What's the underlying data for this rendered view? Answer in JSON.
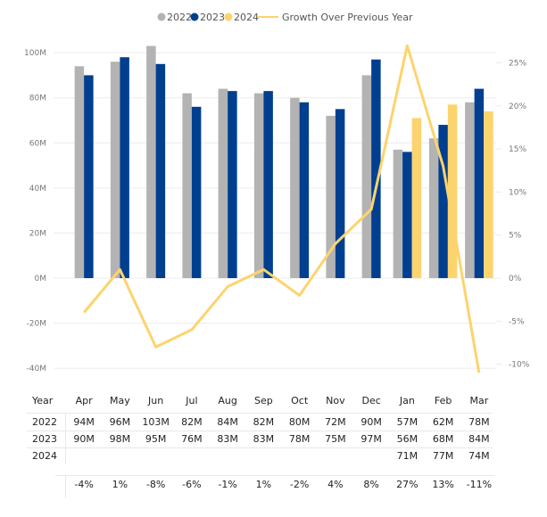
{
  "chart_data": {
    "type": "bar",
    "title": "",
    "categories": [
      "Apr",
      "May",
      "Jun",
      "Jul",
      "Aug",
      "Sep",
      "Oct",
      "Nov",
      "Dec",
      "Jan",
      "Feb",
      "Mar"
    ],
    "series": [
      {
        "name": "2022",
        "color": "#b3b3b3",
        "values": [
          94,
          96,
          103,
          82,
          84,
          82,
          80,
          72,
          90,
          57,
          62,
          78
        ],
        "labels": [
          "94M",
          "96M",
          "103M",
          "82M",
          "84M",
          "82M",
          "80M",
          "72M",
          "90M",
          "57M",
          "62M",
          "78M"
        ]
      },
      {
        "name": "2023",
        "color": "#003f8f",
        "values": [
          90,
          98,
          95,
          76,
          83,
          83,
          78,
          75,
          97,
          56,
          68,
          84
        ],
        "labels": [
          "90M",
          "98M",
          "95M",
          "76M",
          "83M",
          "83M",
          "78M",
          "75M",
          "97M",
          "56M",
          "68M",
          "84M"
        ]
      },
      {
        "name": "2024",
        "color": "#fcd46e",
        "values": [
          null,
          null,
          null,
          null,
          null,
          null,
          null,
          null,
          null,
          71,
          77,
          74
        ],
        "labels": [
          "",
          "",
          "",
          "",
          "",
          "",
          "",
          "",
          "",
          "71M",
          "77M",
          "74M"
        ]
      }
    ],
    "line_series": {
      "name": "Growth Over Previous Year",
      "color": "#fcd46e",
      "values": [
        -4,
        1,
        -8,
        -6,
        -1,
        1,
        -2,
        4,
        8,
        27,
        13,
        -11
      ],
      "labels": [
        "-4%",
        "1%",
        "-8%",
        "-6%",
        "-1%",
        "1%",
        "-2%",
        "4%",
        "8%",
        "27%",
        "13%",
        "-11%"
      ]
    },
    "left_axis": {
      "ticks": [
        "100M",
        "80M",
        "60M",
        "40M",
        "20M",
        "0M",
        "-20M",
        "-40M"
      ],
      "values": [
        100,
        80,
        60,
        40,
        20,
        0,
        -20,
        -40
      ],
      "range": [
        -40,
        100
      ],
      "unit": "M"
    },
    "right_axis": {
      "ticks": [
        "25%",
        "20%",
        "15%",
        "10%",
        "5%",
        "0%",
        "-5%",
        "-10%"
      ],
      "values": [
        25,
        20,
        15,
        10,
        5,
        0,
        -5,
        -10
      ],
      "range": [
        -10,
        25
      ],
      "unit": "%"
    },
    "legend": {
      "position": "top-center",
      "items": [
        "2022",
        "2023",
        "2024",
        "Growth Over Previous Year"
      ]
    },
    "grid": true
  },
  "table": {
    "header_label": "Year",
    "row_labels": [
      "2022",
      "2023",
      "2024"
    ]
  }
}
